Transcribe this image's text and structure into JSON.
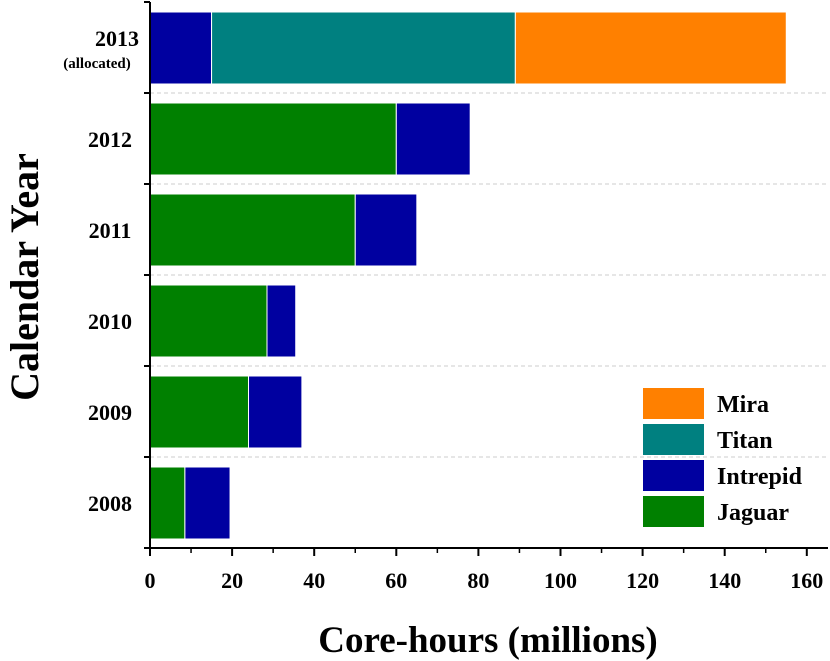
{
  "chart_data": {
    "type": "bar",
    "orientation": "horizontal",
    "stacked": true,
    "categories": [
      {
        "label": "2013",
        "sublabel": "(allocated)"
      },
      {
        "label": "2012",
        "sublabel": ""
      },
      {
        "label": "2011",
        "sublabel": ""
      },
      {
        "label": "2010",
        "sublabel": ""
      },
      {
        "label": "2009",
        "sublabel": ""
      },
      {
        "label": "2008",
        "sublabel": ""
      }
    ],
    "series": [
      {
        "name": "Jaguar",
        "color": "#008000",
        "values": [
          0,
          60,
          50,
          28.5,
          24,
          8.5
        ]
      },
      {
        "name": "Intrepid",
        "color": "#0000a0",
        "values": [
          15,
          18,
          15,
          7,
          13,
          11
        ]
      },
      {
        "name": "Titan",
        "color": "#008080",
        "values": [
          74,
          0,
          0,
          0,
          0,
          0
        ]
      },
      {
        "name": "Mira",
        "color": "#ff8000",
        "values": [
          66,
          0,
          0,
          0,
          0,
          0
        ]
      }
    ],
    "legend_order": [
      "Mira",
      "Titan",
      "Intrepid",
      "Jaguar"
    ],
    "legend_position": "bottom-right",
    "xlabel": "Core-hours (millions)",
    "ylabel": "Calendar Year",
    "xlim": [
      0,
      165
    ],
    "xticks": [
      0,
      20,
      40,
      60,
      80,
      100,
      120,
      140,
      160
    ],
    "grid": "horizontal dashed between categories"
  }
}
